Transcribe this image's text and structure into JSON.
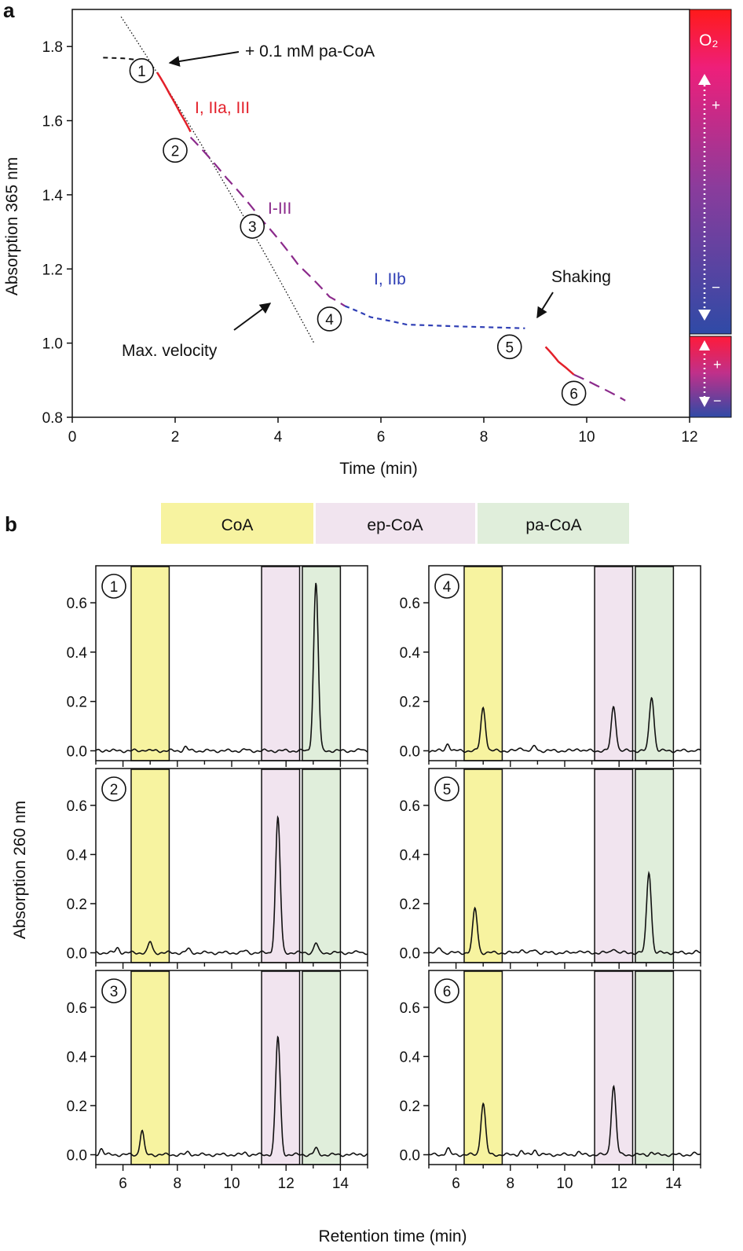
{
  "panel_a": {
    "letter": "a",
    "annotations": {
      "addition": "+ 0.1 mM pa-CoA",
      "max_velocity": "Max. velocity",
      "shaking": "Shaking",
      "seg_red": "I, IIa, III",
      "seg_purple": "I-III",
      "seg_blue": "I, IIb"
    },
    "o2_bar": {
      "label": "O₂",
      "plus": "+",
      "minus": "−"
    },
    "sample_points": [
      "1",
      "2",
      "3",
      "4",
      "5",
      "6"
    ]
  },
  "panel_b": {
    "letter": "b",
    "legend": [
      "CoA",
      "ep-CoA",
      "pa-CoA"
    ],
    "ylabel": "Absorption 260 nm",
    "xlabel": "Retention time (min)",
    "panel_numbers": [
      "1",
      "2",
      "3",
      "4",
      "5",
      "6"
    ]
  },
  "colors": {
    "red": "#e3202a",
    "purple": "#8b2a8b",
    "blue": "#2f3fb5",
    "coa_band": "#f7f3a0",
    "epcoa_band": "#f1e4ef",
    "pacoa_band": "#e0eedb"
  },
  "chart_data": [
    {
      "type": "line",
      "title": "",
      "xlabel": "Time (min)",
      "ylabel": "Absorption 365 nm",
      "xlim": [
        0,
        12
      ],
      "ylim": [
        0.8,
        1.9
      ],
      "xticks": [
        0,
        2,
        4,
        6,
        8,
        10,
        12
      ],
      "yticks": [
        0.8,
        1.0,
        1.2,
        1.4,
        1.6,
        1.8
      ],
      "series": [
        {
          "style": "baseline",
          "x": [
            0.6,
            1.0,
            1.4
          ],
          "y": [
            1.77,
            1.768,
            1.762
          ]
        },
        {
          "style": "max-velocity",
          "x": [
            0.95,
            4.7
          ],
          "y": [
            1.88,
            1.0
          ]
        },
        {
          "style": "I, IIa, III",
          "x": [
            1.65,
            1.9,
            2.1,
            2.3
          ],
          "y": [
            1.73,
            1.67,
            1.62,
            1.57
          ]
        },
        {
          "style": "I-III",
          "x": [
            2.3,
            3.0,
            3.7,
            4.4,
            5.0,
            5.3
          ],
          "y": [
            1.555,
            1.445,
            1.33,
            1.21,
            1.125,
            1.1
          ]
        },
        {
          "style": "I, IIb",
          "x": [
            5.3,
            5.8,
            6.5,
            7.5,
            8.8
          ],
          "y": [
            1.1,
            1.07,
            1.05,
            1.045,
            1.04
          ]
        },
        {
          "style": "after-shaking-red",
          "x": [
            9.2,
            9.45,
            9.75
          ],
          "y": [
            0.99,
            0.95,
            0.915
          ]
        },
        {
          "style": "after-shaking-purple",
          "x": [
            9.75,
            10.2,
            10.75
          ],
          "y": [
            0.915,
            0.885,
            0.845
          ]
        }
      ],
      "sample_markers": [
        {
          "label": "1",
          "x": 1.35,
          "y": 1.735
        },
        {
          "label": "2",
          "x": 2.0,
          "y": 1.52
        },
        {
          "label": "3",
          "x": 3.5,
          "y": 1.315
        },
        {
          "label": "4",
          "x": 5.0,
          "y": 1.065
        },
        {
          "label": "5",
          "x": 8.5,
          "y": 0.99
        },
        {
          "label": "6",
          "x": 9.75,
          "y": 0.865
        }
      ]
    },
    {
      "type": "line",
      "title": "",
      "xlabel": "Retention time (min)",
      "ylabel": "Absorption 260 nm",
      "xlim": [
        5,
        15
      ],
      "ylim": [
        -0.04,
        0.75
      ],
      "xticks": [
        6,
        8,
        10,
        12,
        14
      ],
      "yticks": [
        0.0,
        0.2,
        0.4,
        0.6
      ],
      "bands": [
        {
          "name": "CoA",
          "x": [
            6.3,
            7.7
          ]
        },
        {
          "name": "ep-CoA",
          "x": [
            11.1,
            12.5
          ]
        },
        {
          "name": "pa-CoA",
          "x": [
            12.6,
            14.0
          ]
        }
      ],
      "chromatograms": [
        {
          "panel": "1",
          "peaks": [
            [
              5.4,
              0.004
            ],
            [
              6.8,
              0.005
            ],
            [
              8.3,
              0.015
            ],
            [
              10.5,
              0.004
            ],
            [
              13.1,
              0.68
            ],
            [
              14.8,
              0.005
            ]
          ]
        },
        {
          "panel": "2",
          "peaks": [
            [
              5.8,
              0.02
            ],
            [
              7.0,
              0.045
            ],
            [
              8.4,
              0.015
            ],
            [
              10.5,
              0.008
            ],
            [
              11.7,
              0.55
            ],
            [
              13.1,
              0.04
            ],
            [
              14.7,
              0.004
            ]
          ]
        },
        {
          "panel": "3",
          "peaks": [
            [
              5.2,
              0.025
            ],
            [
              6.7,
              0.1
            ],
            [
              8.4,
              0.01
            ],
            [
              10.5,
              0.008
            ],
            [
              11.7,
              0.48
            ],
            [
              13.1,
              0.025
            ],
            [
              14.7,
              0.004
            ]
          ]
        },
        {
          "panel": "4",
          "peaks": [
            [
              5.7,
              0.03
            ],
            [
              7.0,
              0.175
            ],
            [
              8.4,
              0.015
            ],
            [
              8.9,
              0.018
            ],
            [
              10.5,
              0.01
            ],
            [
              11.8,
              0.18
            ],
            [
              13.2,
              0.22
            ],
            [
              14.8,
              0.004
            ]
          ]
        },
        {
          "panel": "5",
          "peaks": [
            [
              5.4,
              0.02
            ],
            [
              6.7,
              0.18
            ],
            [
              8.4,
              0.015
            ],
            [
              8.9,
              0.014
            ],
            [
              10.5,
              0.01
            ],
            [
              11.8,
              0.02
            ],
            [
              13.1,
              0.33
            ],
            [
              14.8,
              0.004
            ]
          ]
        },
        {
          "panel": "6",
          "peaks": [
            [
              5.7,
              0.025
            ],
            [
              7.0,
              0.21
            ],
            [
              8.4,
              0.015
            ],
            [
              8.9,
              0.02
            ],
            [
              10.5,
              0.01
            ],
            [
              11.8,
              0.28
            ],
            [
              13.2,
              0.01
            ],
            [
              14.8,
              0.004
            ]
          ]
        }
      ]
    }
  ]
}
